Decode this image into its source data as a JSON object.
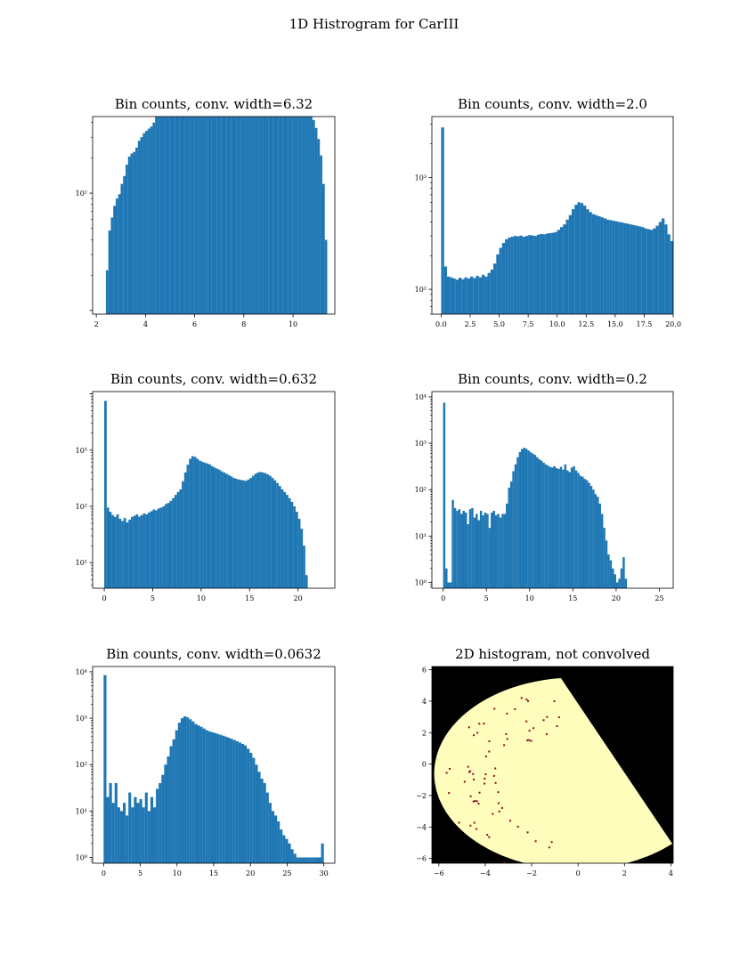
{
  "figure": {
    "title": "1D Histrogram for CarIII"
  },
  "colors": {
    "bar": "#1f77b4",
    "hist2d_fill": "#fefdbc",
    "hist2d_bg": "#000000",
    "hist2d_dot": "#8b0a2a"
  },
  "chart_data": [
    {
      "type": "bar",
      "title": "Bin counts, conv. width=6.32",
      "yscale": "log",
      "xlim": [
        1.85,
        11.7
      ],
      "ylim": [
        9.3,
        450
      ],
      "xticks": [
        2,
        4,
        6,
        8,
        10
      ],
      "xtick_labels": [
        "2",
        "4",
        "6",
        "8",
        "10"
      ],
      "yticks_major": [
        100
      ],
      "ytick_labels": [
        "10²"
      ],
      "bin_start": 2.19,
      "bin_width": 0.1,
      "values": [
        1,
        8,
        22,
        48,
        62,
        78,
        90,
        98,
        120,
        140,
        175,
        205,
        218,
        225,
        245,
        280,
        300,
        325,
        340,
        355,
        370,
        400,
        460,
        540,
        640,
        760,
        880,
        1000,
        1100,
        1200,
        1280,
        1360,
        1420,
        1490,
        1500,
        1520,
        1560,
        1600,
        1640,
        1680,
        1720,
        1720,
        1700,
        1680,
        1650,
        1610,
        1580,
        1550,
        1520,
        1490,
        1460,
        1440,
        1420,
        1400,
        1380,
        1350,
        1320,
        1300,
        1280,
        1250,
        1220,
        1200,
        1170,
        1140,
        1110,
        1090,
        1060,
        1030,
        1000,
        970,
        940,
        910,
        880,
        850,
        820,
        790,
        760,
        730,
        700,
        670,
        640,
        610,
        580,
        550,
        510,
        470,
        420,
        360,
        290,
        210,
        120,
        40
      ]
    },
    {
      "type": "bar",
      "title": "Bin counts, conv. width=2.0",
      "yscale": "log",
      "xlim": [
        -0.8,
        20.0
      ],
      "ylim": [
        60,
        3500
      ],
      "xticks": [
        0,
        2.5,
        5,
        7.5,
        10,
        12.5,
        15,
        17.5,
        20
      ],
      "xtick_labels": [
        "0.0",
        "2.5",
        "5.0",
        "7.5",
        "10.0",
        "12.5",
        "15.0",
        "17.5",
        "20.0"
      ],
      "yticks_major": [
        100,
        1000
      ],
      "ytick_labels": [
        "10²",
        "10³"
      ],
      "bin_start": 0,
      "bin_width": 0.25,
      "values": [
        2800,
        160,
        130,
        128,
        125,
        122,
        127,
        123,
        128,
        125,
        130,
        126,
        132,
        128,
        135,
        130,
        140,
        150,
        170,
        205,
        235,
        260,
        280,
        290,
        295,
        300,
        298,
        302,
        295,
        300,
        305,
        303,
        300,
        308,
        312,
        310,
        315,
        318,
        320,
        325,
        340,
        360,
        380,
        420,
        460,
        520,
        570,
        600,
        590,
        560,
        520,
        490,
        470,
        460,
        450,
        440,
        430,
        420,
        415,
        410,
        405,
        400,
        395,
        390,
        385,
        380,
        375,
        370,
        365,
        360,
        350,
        345,
        340,
        350,
        370,
        400,
        430,
        380,
        310,
        270,
        240,
        210,
        190,
        170,
        155,
        140,
        130,
        120,
        110,
        100,
        90,
        75
      ]
    },
    {
      "type": "bar",
      "title": "Bin counts, conv. width=0.632",
      "yscale": "log",
      "xlim": [
        -1.2,
        23.8
      ],
      "ylim": [
        3.5,
        11000
      ],
      "xticks": [
        0,
        5,
        10,
        15,
        20
      ],
      "xtick_labels": [
        "0",
        "5",
        "10",
        "15",
        "20"
      ],
      "yticks_major": [
        10,
        100,
        1000
      ],
      "ytick_labels": [
        "10¹",
        "10²",
        "10³"
      ],
      "bin_start": 0,
      "bin_width": 0.25,
      "values": [
        7500,
        95,
        80,
        70,
        65,
        72,
        60,
        55,
        62,
        52,
        58,
        65,
        68,
        72,
        66,
        70,
        75,
        72,
        78,
        82,
        88,
        85,
        92,
        95,
        100,
        110,
        115,
        125,
        140,
        160,
        180,
        200,
        280,
        400,
        550,
        700,
        780,
        760,
        700,
        650,
        620,
        600,
        580,
        560,
        520,
        490,
        470,
        450,
        420,
        400,
        380,
        360,
        340,
        320,
        310,
        300,
        295,
        290,
        285,
        300,
        320,
        350,
        380,
        400,
        410,
        400,
        390,
        370,
        350,
        320,
        290,
        260,
        230,
        200,
        180,
        160,
        140,
        120,
        100,
        80,
        60,
        40,
        20,
        6
      ]
    },
    {
      "type": "bar",
      "title": "Bin counts, conv. width=0.2",
      "yscale": "log",
      "xlim": [
        -1.3,
        26.6
      ],
      "ylim": [
        0.75,
        13000
      ],
      "xticks": [
        0,
        5,
        10,
        15,
        20,
        25
      ],
      "xtick_labels": [
        "0",
        "5",
        "10",
        "15",
        "20",
        "25"
      ],
      "yticks_major": [
        1,
        10,
        100,
        1000,
        10000
      ],
      "ytick_labels": [
        "10⁰",
        "10¹",
        "10²",
        "10³",
        "10⁴"
      ],
      "bin_start": 0,
      "bin_width": 0.25,
      "values": [
        7500,
        2,
        1,
        1,
        60,
        40,
        35,
        38,
        30,
        35,
        32,
        18,
        38,
        40,
        25,
        30,
        22,
        35,
        28,
        32,
        30,
        15,
        32,
        35,
        28,
        30,
        25,
        30,
        30,
        50,
        110,
        150,
        250,
        350,
        500,
        650,
        750,
        800,
        760,
        700,
        640,
        600,
        560,
        500,
        450,
        420,
        380,
        350,
        330,
        310,
        300,
        320,
        290,
        280,
        310,
        270,
        350,
        260,
        240,
        300,
        320,
        260,
        230,
        200,
        190,
        170,
        160,
        140,
        120,
        100,
        80,
        70,
        50,
        30,
        15,
        8,
        4,
        3,
        2,
        1.5,
        1,
        1.2,
        2,
        3.5,
        1.2
      ]
    },
    {
      "type": "bar",
      "title": "Bin counts, conv. width=0.0632",
      "yscale": "log",
      "xlim": [
        -1.5,
        31.5
      ],
      "ylim": [
        0.75,
        13000
      ],
      "xticks": [
        0,
        5,
        10,
        15,
        20,
        25,
        30
      ],
      "xtick_labels": [
        "0",
        "5",
        "10",
        "15",
        "20",
        "25",
        "30"
      ],
      "yticks_major": [
        1,
        10,
        100,
        1000,
        10000
      ],
      "ytick_labels": [
        "10⁰",
        "10¹",
        "10²",
        "10³",
        "10⁴"
      ],
      "bin_start": 0,
      "bin_width": 0.375,
      "values": [
        8500,
        20,
        40,
        15,
        40,
        12,
        10,
        15,
        8,
        25,
        12,
        20,
        15,
        18,
        12,
        25,
        10,
        20,
        12,
        30,
        40,
        60,
        100,
        150,
        250,
        350,
        550,
        800,
        1000,
        1100,
        1050,
        950,
        850,
        750,
        700,
        650,
        600,
        550,
        520,
        500,
        480,
        460,
        440,
        420,
        400,
        380,
        360,
        340,
        320,
        300,
        280,
        260,
        220,
        180,
        140,
        100,
        70,
        50,
        40,
        25,
        15,
        10,
        8,
        6,
        4,
        3,
        2.5,
        2,
        1.5,
        1.2,
        1,
        1,
        1,
        1,
        1,
        1,
        1,
        1,
        1,
        2
      ]
    },
    {
      "type": "heatmap",
      "title": "2D histogram, not convolved",
      "xlim": [
        -6.3,
        4.1
      ],
      "ylim": [
        -6.3,
        6.2
      ],
      "xticks": [
        -6,
        -4,
        -2,
        0,
        2,
        4
      ],
      "xtick_labels": [
        "−6",
        "−4",
        "−2",
        "0",
        "2",
        "4"
      ],
      "yticks": [
        -6,
        -4,
        -2,
        0,
        2,
        4,
        6
      ],
      "ytick_labels": [
        "−6",
        "−4",
        "−2",
        "0",
        "2",
        "4",
        "6"
      ],
      "region_circle": {
        "cx": -0.1,
        "cy": -0.6,
        "r": 6.1
      },
      "region_line": {
        "p1": [
          -1.0,
          6.2
        ],
        "p2": [
          4.05,
          -4.9
        ]
      }
    }
  ]
}
